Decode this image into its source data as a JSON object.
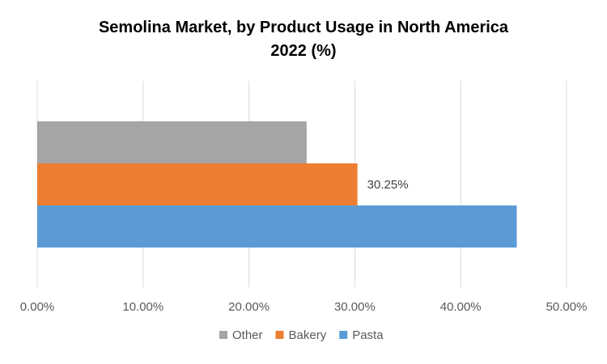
{
  "chart_data": {
    "type": "bar",
    "orientation": "horizontal",
    "title_lines": [
      "Semolina Market, by Product Usage in North America",
      "2022 (%)"
    ],
    "xlim": [
      0,
      50
    ],
    "x_ticks": [
      0,
      10,
      20,
      30,
      40,
      50
    ],
    "x_tick_labels": [
      "0.00%",
      "10.00%",
      "20.00%",
      "30.00%",
      "40.00%",
      "50.00%"
    ],
    "grid": "vertical",
    "legend_position": "bottom",
    "series": [
      {
        "name": "Other",
        "value": 25.45,
        "color": "#A5A5A5",
        "data_label": ""
      },
      {
        "name": "Bakery",
        "value": 30.25,
        "color": "#ED7D31",
        "data_label": "30.25%"
      },
      {
        "name": "Pasta",
        "value": 45.3,
        "color": "#5B9BD5",
        "data_label": ""
      }
    ]
  }
}
